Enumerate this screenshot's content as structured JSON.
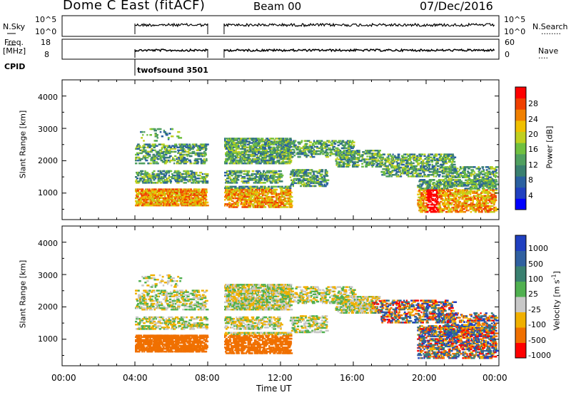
{
  "header": {
    "station": "Dome C East (fitACF)",
    "beam": "Beam 00",
    "date": "07/Dec/2016"
  },
  "left_labels": {
    "nsky": "N.Sky",
    "freq_line1": "Freq.",
    "freq_line2": "[MHz]",
    "cpid": "CPID"
  },
  "right_labels": {
    "nsearch": "N.Search",
    "nave": "Nave",
    "dots": "........",
    "dots2": "...."
  },
  "noise_panel": {
    "left_ticks": [
      "10^5",
      "10^0"
    ],
    "right_ticks": [
      "10^5",
      "10^0"
    ]
  },
  "freq_panel": {
    "left_ticks": [
      "18",
      "8"
    ],
    "right_ticks": [
      "60",
      "0"
    ]
  },
  "cpid_panel": {
    "label": "twofsound 3501"
  },
  "chart_data": [
    {
      "type": "heatmap",
      "name": "power",
      "ylabel": "Slant Range [km]",
      "ylim": [
        180,
        4500
      ],
      "yticks": [
        "1000",
        "2000",
        "3000",
        "4000"
      ],
      "xlim": [
        0,
        24
      ],
      "colorbar_label": "Power [dB]",
      "colorbar_ticks": [
        "28",
        "24",
        "20",
        "16",
        "12",
        "8",
        "4"
      ],
      "colors": [
        "#0000ff",
        "#2040c0",
        "#2a60a0",
        "#3a8070",
        "#50a060",
        "#70c040",
        "#c0d020",
        "#f0c000",
        "#f08000",
        "#f04000",
        "#ff0000"
      ],
      "data_gaps_hours": [
        [
          0,
          4.0
        ],
        [
          8.0,
          8.9
        ]
      ]
    },
    {
      "type": "heatmap",
      "name": "velocity",
      "ylabel": "Slant Range [km]",
      "ylim": [
        180,
        4500
      ],
      "yticks": [
        "1000",
        "2000",
        "3000",
        "4000"
      ],
      "xlim": [
        0,
        24
      ],
      "xlabel": "Time UT",
      "xticks": [
        "00:00",
        "04:00",
        "08:00",
        "12:00",
        "16:00",
        "20:00",
        "00:00"
      ],
      "colorbar_label_main": "Velocity [m s",
      "colorbar_label_sup": "-1",
      "colorbar_label_end": "]",
      "colorbar_ticks": [
        "1000",
        "500",
        "100",
        "25",
        "-25",
        "-100",
        "-500",
        "-1000"
      ],
      "colors": [
        "#2040c0",
        "#3060a0",
        "#3a8070",
        "#50b050",
        "#c8c8c8",
        "#f0b000",
        "#f07000",
        "#ff0000"
      ],
      "data_gaps_hours": [
        [
          0,
          4.0
        ],
        [
          8.0,
          8.9
        ]
      ]
    }
  ]
}
